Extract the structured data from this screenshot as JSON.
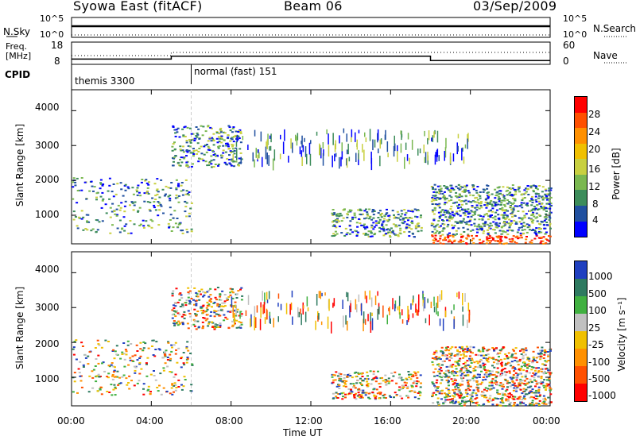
{
  "header": {
    "title": "Syowa East (fitACF)",
    "beam": "Beam 06",
    "date": "03/Sep/2009"
  },
  "nsky_panel": {
    "left_label": "N.Sky",
    "right_label": "N.Search",
    "left_ticks": [
      "10^5",
      "10^0"
    ],
    "right_ticks": [
      "10^5",
      "10^0"
    ]
  },
  "freq_panel": {
    "left_label_line1": "Freq.",
    "left_label_line2": "[MHz]",
    "right_label": "Nave",
    "left_ticks": [
      "18",
      "8"
    ],
    "right_ticks": [
      "60",
      "0"
    ]
  },
  "cpid_panel": {
    "label": "CPID",
    "modes": [
      "themis 3300",
      "normal (fast) 151"
    ]
  },
  "power_panel": {
    "ylabel": "Slant Range [km]",
    "yticks": [
      "4000",
      "3000",
      "2000",
      "1000"
    ],
    "colorbar_label": "Power [dB]",
    "colorbar_ticks": [
      "28",
      "24",
      "20",
      "16",
      "12",
      "8",
      "4"
    ],
    "colorbar_colors": [
      "#ff0000",
      "#ff5000",
      "#ff9000",
      "#f0c000",
      "#c8d040",
      "#7ab850",
      "#3c8c5a",
      "#2050a0",
      "#0000ff"
    ]
  },
  "velocity_panel": {
    "ylabel": "Slant Range [km]",
    "yticks": [
      "4000",
      "3000",
      "2000",
      "1000"
    ],
    "colorbar_label": "Velocity [m s⁻¹]",
    "colorbar_ticks": [
      "1000",
      "500",
      "100",
      "25",
      "-25",
      "-100",
      "-500",
      "-1000"
    ],
    "colorbar_colors": [
      "#2040c0",
      "#2e7a60",
      "#40b040",
      "#c0c0c0",
      "#f0c000",
      "#ff9000",
      "#ff5000",
      "#ff0000"
    ]
  },
  "xaxis": {
    "ticks": [
      "00:00",
      "04:00",
      "08:00",
      "12:00",
      "16:00",
      "20:00",
      "00:00"
    ],
    "label": "Time UT"
  },
  "chart_data": {
    "type": "heatmap",
    "x_range_hours": [
      0,
      24
    ],
    "y_range_km": [
      180,
      4600
    ],
    "cpid_segments": [
      {
        "start_hour": 0,
        "end_hour": 6,
        "mode": "themis 3300"
      },
      {
        "start_hour": 6,
        "end_hour": 24,
        "mode": "normal (fast) 151"
      }
    ],
    "frequency_mhz_segments": [
      {
        "start_hour": 0,
        "end_hour": 5,
        "value": 10
      },
      {
        "start_hour": 5,
        "end_hour": 18,
        "value": 12
      },
      {
        "start_hour": 18,
        "end_hour": 24,
        "value": 9
      }
    ],
    "echo_regions": [
      {
        "x0": 0,
        "x1": 6,
        "y0": 500,
        "y1": 2100,
        "kind": "near-range"
      },
      {
        "x0": 5,
        "x1": 8.5,
        "y0": 2400,
        "y1": 3600,
        "kind": "far-range"
      },
      {
        "x0": 8,
        "x1": 20,
        "y0": 2600,
        "y1": 3500,
        "kind": "far-range-striations"
      },
      {
        "x0": 13,
        "x1": 17.5,
        "y0": 400,
        "y1": 1200,
        "kind": "mid-range"
      },
      {
        "x0": 18,
        "x1": 24,
        "y0": 200,
        "y1": 1900,
        "kind": "dense-band"
      }
    ]
  }
}
